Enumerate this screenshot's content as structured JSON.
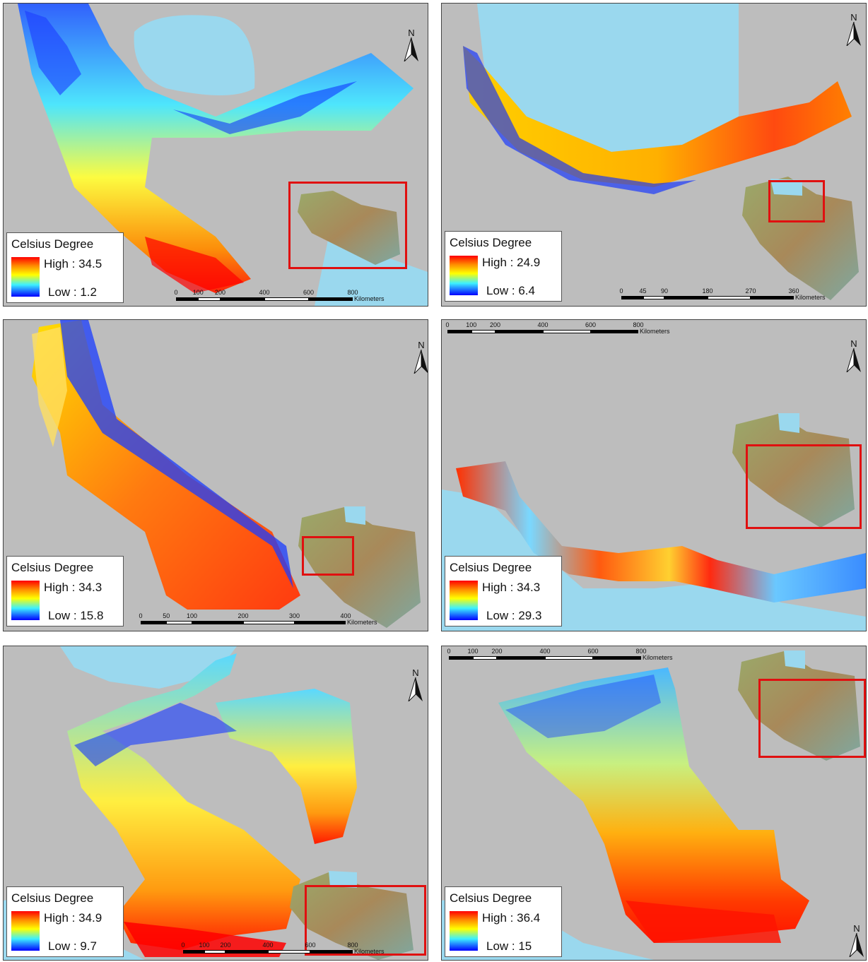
{
  "legend_title": "Celsius Degree",
  "north_label": "N",
  "colors": {
    "ramp_high": "#ff0000",
    "ramp_mid": "#ffff00",
    "ramp_low": "#0000ff",
    "water": "#9ad8ee",
    "terrain": "#bdbdbd",
    "inset_frame": "#e01010"
  },
  "panels": [
    {
      "legend": {
        "high": "High : 34.5",
        "low": "Low : 1.2"
      },
      "scale": {
        "ticks": [
          "0",
          "100",
          "200",
          "400",
          "600",
          "800"
        ],
        "unit": "Kilometers"
      }
    },
    {
      "legend": {
        "high": "High : 24.9",
        "low": "Low : 6.4"
      },
      "scale": {
        "ticks": [
          "0",
          "45",
          "90",
          "180",
          "270",
          "360"
        ],
        "unit": "Kilometers"
      }
    },
    {
      "legend": {
        "high": "High : 34.3",
        "low": "Low : 15.8"
      },
      "scale": {
        "ticks": [
          "0",
          "50",
          "100",
          "200",
          "300",
          "400"
        ],
        "unit": "Kilometers"
      }
    },
    {
      "legend": {
        "high": "High : 34.3",
        "low": "Low : 29.3"
      },
      "scale": {
        "ticks": [
          "0",
          "100",
          "200",
          "400",
          "600",
          "800"
        ],
        "unit": "Kilometers"
      }
    },
    {
      "legend": {
        "high": "High : 34.9",
        "low": "Low : 9.7"
      },
      "scale": {
        "ticks": [
          "0",
          "100",
          "200",
          "400",
          "600",
          "800"
        ],
        "unit": "Kilometers"
      }
    },
    {
      "legend": {
        "high": "High : 36.4",
        "low": "Low : 15"
      },
      "scale": {
        "ticks": [
          "0",
          "100",
          "200",
          "400",
          "600",
          "800"
        ],
        "unit": "Kilometers"
      }
    }
  ]
}
